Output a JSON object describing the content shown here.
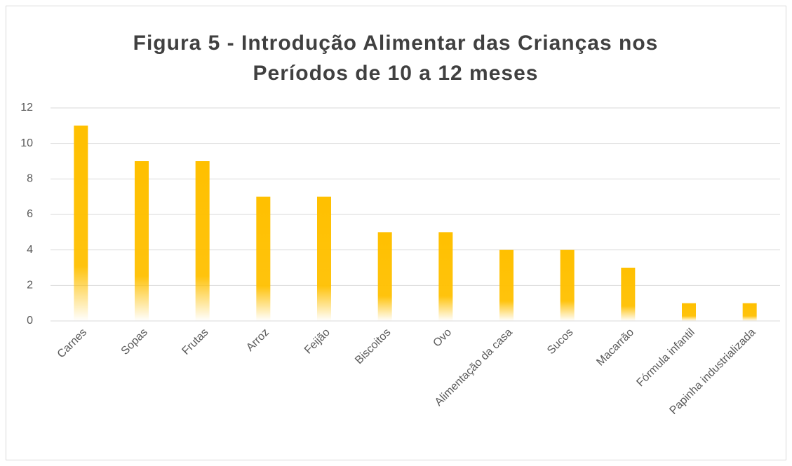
{
  "chart_data": {
    "type": "bar",
    "title": "Figura 5 - Introdução Alimentar das Crianças nos Períodos de 10 a 12 meses",
    "categories": [
      "Carnes",
      "Sopas",
      "Frutas",
      "Arroz",
      "Feijão",
      "Biscoitos",
      "Ovo",
      "Alimentação da casa",
      "Sucos",
      "Macarrão",
      "Fórmula infantil",
      "Papinha industrializada"
    ],
    "values": [
      11,
      9,
      9,
      7,
      7,
      5,
      5,
      4,
      4,
      3,
      1,
      1
    ],
    "color": "#ffc000",
    "ylim": [
      0,
      12
    ],
    "yticks": [
      0,
      2,
      4,
      6,
      8,
      10,
      12
    ],
    "grid": true
  }
}
